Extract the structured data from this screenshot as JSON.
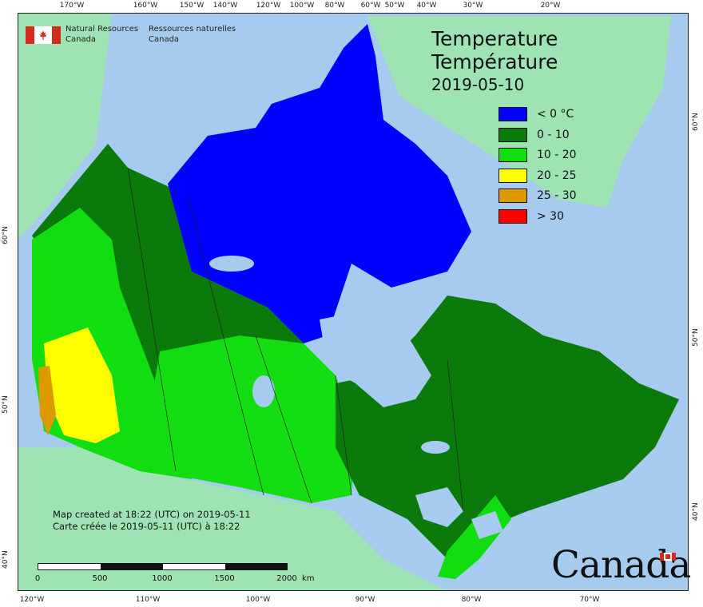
{
  "organization": {
    "name_en_1": "Natural Resources",
    "name_en_2": "Canada",
    "name_fr_1": "Ressources naturelles",
    "name_fr_2": "Canada"
  },
  "title": {
    "line1": "Temperature",
    "line2": "Température",
    "date": "2019-05-10"
  },
  "legend": [
    {
      "label": "< 0 °C",
      "color": "#0000ff"
    },
    {
      "label": "0 - 10",
      "color": "#0a7a0a"
    },
    {
      "label": "10 - 20",
      "color": "#11dd11"
    },
    {
      "label": "20 - 25",
      "color": "#ffff00"
    },
    {
      "label": "25 - 30",
      "color": "#dd9900"
    },
    {
      "label": "> 30",
      "color": "#ff0000"
    }
  ],
  "credit": {
    "line1": "Map created at 18:22 (UTC) on 2019-05-11",
    "line2": "Carte créée le 2019-05-11 (UTC) à 18:22"
  },
  "scale": {
    "labels": [
      "0",
      "500",
      "1000",
      "1500",
      "2000"
    ],
    "unit": "km"
  },
  "graticule": {
    "top": [
      "170°W",
      "160°W",
      "150°W",
      "140°W",
      "120°W",
      "100°W",
      "80°W",
      "60°W",
      "50°W",
      "40°W",
      "30°W",
      "20°W"
    ],
    "bottom": [
      "120°W",
      "110°W",
      "100°W",
      "90°W",
      "80°W",
      "70°W"
    ],
    "left": [
      "60°N",
      "50°N",
      "40°N"
    ],
    "right": [
      "60°N",
      "50°N",
      "40°N"
    ]
  },
  "wordmark": "Canada",
  "colors": {
    "water": "#a6cbee",
    "land_other": "#9ee3b4"
  }
}
